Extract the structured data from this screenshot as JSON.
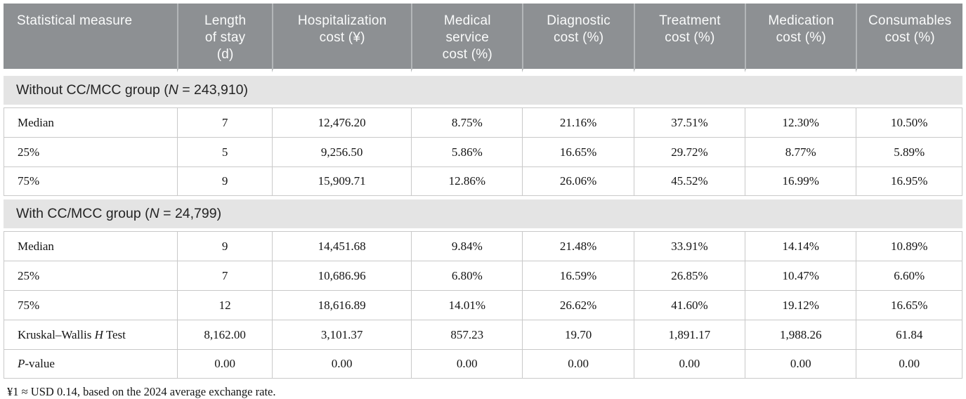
{
  "table": {
    "header": {
      "columns": [
        "Statistical measure",
        "Length\nof stay\n(d)",
        "Hospitalization\ncost (¥)",
        "Medical\nservice\ncost (%)",
        "Diagnostic\ncost (%)",
        "Treatment\ncost (%)",
        "Medication\ncost (%)",
        "Consumables\ncost (%)"
      ]
    },
    "sections": [
      {
        "title": "Without CC/MCC group (*N* = 243,910)",
        "rows": [
          {
            "label": "Median",
            "values": [
              "7",
              "12,476.20",
              "8.75%",
              "21.16%",
              "37.51%",
              "12.30%",
              "10.50%"
            ]
          },
          {
            "label": "25%",
            "values": [
              "5",
              "9,256.50",
              "5.86%",
              "16.65%",
              "29.72%",
              "8.77%",
              "5.89%"
            ]
          },
          {
            "label": "75%",
            "values": [
              "9",
              "15,909.71",
              "12.86%",
              "26.06%",
              "45.52%",
              "16.99%",
              "16.95%"
            ]
          }
        ]
      },
      {
        "title": "With CC/MCC group (*N* = 24,799)",
        "rows": [
          {
            "label": "Median",
            "values": [
              "9",
              "14,451.68",
              "9.84%",
              "21.48%",
              "33.91%",
              "14.14%",
              "10.89%"
            ]
          },
          {
            "label": "25%",
            "values": [
              "7",
              "10,686.96",
              "6.80%",
              "16.59%",
              "26.85%",
              "10.47%",
              "6.60%"
            ]
          },
          {
            "label": "75%",
            "values": [
              "12",
              "18,616.89",
              "14.01%",
              "26.62%",
              "41.60%",
              "19.12%",
              "16.65%"
            ]
          },
          {
            "label": "Kruskal–Wallis *H* Test",
            "values": [
              "8,162.00",
              "3,101.37",
              "857.23",
              "19.70",
              "1,891.17",
              "1,988.26",
              "61.84"
            ]
          },
          {
            "label": "*P*-value",
            "values": [
              "0.00",
              "0.00",
              "0.00",
              "0.00",
              "0.00",
              "0.00",
              "0.00"
            ]
          }
        ]
      }
    ],
    "footnote": "¥1 ≈ USD 0.14, based on the 2024 average exchange rate."
  },
  "colors": {
    "header_bg": "#8d9093",
    "header_text": "#fafbfb",
    "header_divider": "#b3b6b8",
    "group_band_bg": "#e4e4e4",
    "cell_border": "#c9c9c9",
    "body_text": "#141414"
  }
}
